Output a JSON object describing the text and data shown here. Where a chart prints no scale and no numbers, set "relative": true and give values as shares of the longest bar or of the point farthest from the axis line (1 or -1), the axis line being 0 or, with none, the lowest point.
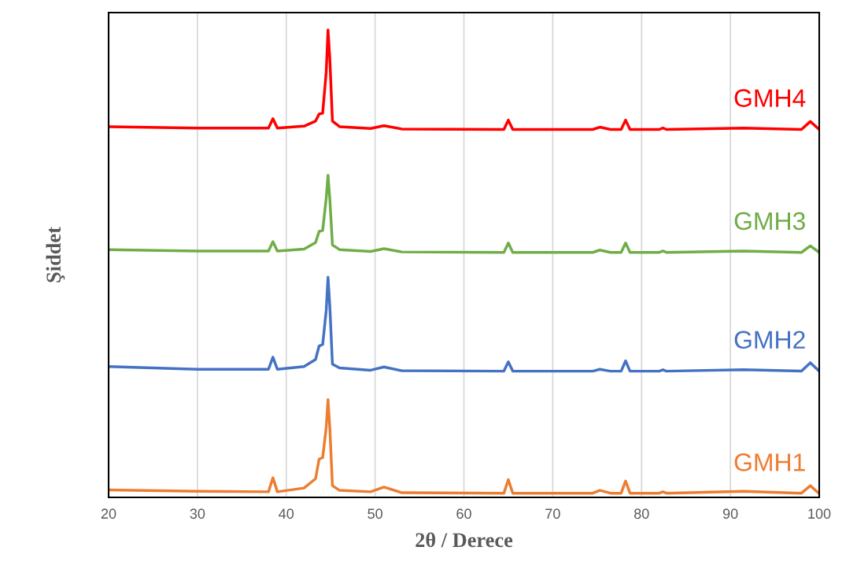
{
  "chart_data": {
    "type": "line",
    "relative": true,
    "xlabel": "2θ / Derece",
    "ylabel": "Şiddet",
    "xlim": [
      20,
      100
    ],
    "xticks": [
      20,
      30,
      40,
      50,
      60,
      70,
      80,
      90,
      100
    ],
    "grid": "x",
    "legend": false,
    "marker": "none",
    "line_style": "solid",
    "x": [
      20,
      30,
      38,
      38.5,
      39,
      42,
      43.3,
      43.7,
      44.1,
      44.5,
      44.7,
      44.9,
      45.2,
      46,
      49.5,
      51,
      53,
      64.5,
      65,
      65.5,
      74.5,
      75.3,
      76.5,
      77.7,
      78.2,
      78.7,
      82,
      82.4,
      82.8,
      91.5,
      98,
      99,
      100
    ],
    "series": [
      {
        "name": "GMH4",
        "color": "#ff0000",
        "values": [
          0.793,
          0.79,
          0.79,
          0.81,
          0.79,
          0.794,
          0.805,
          0.82,
          0.822,
          0.91,
          1.0,
          0.94,
          0.805,
          0.793,
          0.789,
          0.795,
          0.788,
          0.787,
          0.807,
          0.787,
          0.787,
          0.792,
          0.787,
          0.787,
          0.807,
          0.787,
          0.787,
          0.79,
          0.787,
          0.79,
          0.787,
          0.804,
          0.787
        ]
      },
      {
        "name": "GMH3",
        "color": "#70ad47",
        "values": [
          0.53,
          0.527,
          0.527,
          0.547,
          0.527,
          0.531,
          0.545,
          0.569,
          0.571,
          0.64,
          0.689,
          0.64,
          0.54,
          0.53,
          0.526,
          0.532,
          0.525,
          0.524,
          0.544,
          0.524,
          0.524,
          0.529,
          0.524,
          0.524,
          0.544,
          0.524,
          0.524,
          0.527,
          0.524,
          0.527,
          0.524,
          0.538,
          0.524
        ]
      },
      {
        "name": "GMH2",
        "color": "#4472c4",
        "values": [
          0.28,
          0.274,
          0.274,
          0.3,
          0.274,
          0.28,
          0.295,
          0.324,
          0.327,
          0.4,
          0.471,
          0.41,
          0.285,
          0.277,
          0.272,
          0.279,
          0.271,
          0.27,
          0.29,
          0.27,
          0.27,
          0.274,
          0.27,
          0.27,
          0.292,
          0.27,
          0.27,
          0.273,
          0.27,
          0.273,
          0.27,
          0.288,
          0.27
        ]
      },
      {
        "name": "GMH1",
        "color": "#ed7d31",
        "values": [
          0.016,
          0.013,
          0.012,
          0.042,
          0.012,
          0.02,
          0.04,
          0.082,
          0.085,
          0.15,
          0.209,
          0.15,
          0.025,
          0.015,
          0.012,
          0.022,
          0.01,
          0.009,
          0.038,
          0.009,
          0.009,
          0.015,
          0.009,
          0.009,
          0.035,
          0.009,
          0.009,
          0.012,
          0.009,
          0.013,
          0.009,
          0.025,
          0.008
        ]
      }
    ]
  }
}
